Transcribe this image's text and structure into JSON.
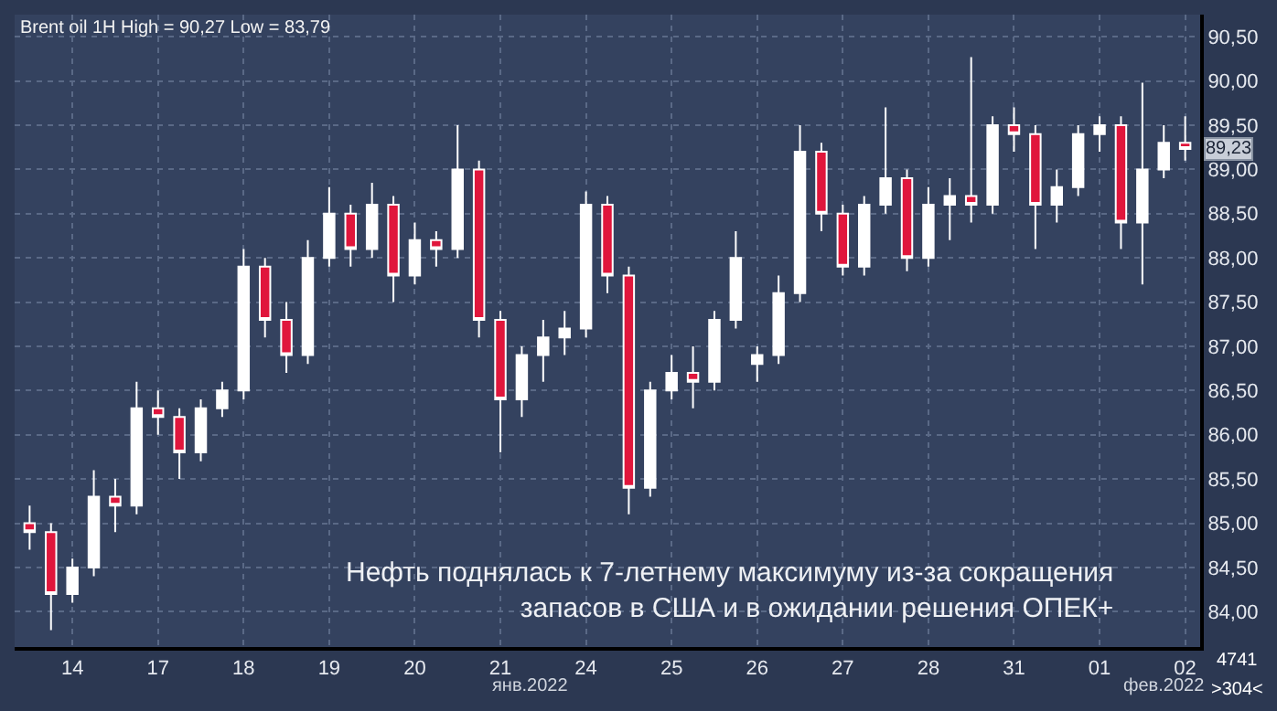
{
  "chart_data": {
    "type": "candlestick",
    "title": "Brent oil 1H High = 90,27 Low = 83,79",
    "categories": [
      null,
      null,
      "14",
      null,
      null,
      null,
      "17",
      null,
      null,
      null,
      "18",
      null,
      null,
      null,
      "19",
      null,
      null,
      null,
      "20",
      null,
      null,
      null,
      "21",
      null,
      null,
      null,
      "24",
      null,
      null,
      null,
      "25",
      null,
      null,
      null,
      "26",
      null,
      null,
      null,
      "27",
      null,
      null,
      null,
      "28",
      null,
      null,
      null,
      "31",
      null,
      null,
      null,
      "01",
      null,
      null,
      null,
      "02"
    ],
    "ohlc": [
      [
        85.0,
        85.2,
        84.7,
        84.9
      ],
      [
        84.9,
        85.0,
        83.79,
        84.2
      ],
      [
        84.2,
        84.6,
        84.1,
        84.5
      ],
      [
        84.5,
        85.6,
        84.4,
        85.3
      ],
      [
        85.3,
        85.5,
        84.9,
        85.2
      ],
      [
        85.2,
        86.6,
        85.1,
        86.3
      ],
      [
        86.3,
        86.5,
        86.0,
        86.2
      ],
      [
        86.2,
        86.3,
        85.5,
        85.8
      ],
      [
        85.8,
        86.4,
        85.7,
        86.3
      ],
      [
        86.3,
        86.6,
        86.2,
        86.5
      ],
      [
        86.5,
        88.1,
        86.4,
        87.9
      ],
      [
        87.9,
        88.0,
        87.1,
        87.3
      ],
      [
        87.3,
        87.5,
        86.7,
        86.9
      ],
      [
        86.9,
        88.2,
        86.8,
        88.0
      ],
      [
        88.0,
        88.8,
        87.9,
        88.5
      ],
      [
        88.5,
        88.6,
        87.9,
        88.1
      ],
      [
        88.1,
        88.85,
        88.0,
        88.6
      ],
      [
        88.6,
        88.7,
        87.5,
        87.8
      ],
      [
        87.8,
        88.4,
        87.7,
        88.2
      ],
      [
        88.2,
        88.3,
        87.9,
        88.1
      ],
      [
        88.1,
        89.5,
        88.0,
        89.0
      ],
      [
        89.0,
        89.1,
        87.1,
        87.3
      ],
      [
        87.3,
        87.4,
        85.8,
        86.4
      ],
      [
        86.4,
        87.0,
        86.2,
        86.9
      ],
      [
        86.9,
        87.3,
        86.6,
        87.1
      ],
      [
        87.1,
        87.4,
        86.9,
        87.2
      ],
      [
        87.2,
        88.75,
        87.1,
        88.6
      ],
      [
        88.6,
        88.7,
        87.6,
        87.8
      ],
      [
        87.8,
        87.9,
        85.1,
        85.4
      ],
      [
        85.4,
        86.6,
        85.3,
        86.5
      ],
      [
        86.5,
        86.9,
        86.4,
        86.7
      ],
      [
        86.7,
        87.0,
        86.3,
        86.6
      ],
      [
        86.6,
        87.4,
        86.5,
        87.3
      ],
      [
        87.3,
        88.3,
        87.2,
        88.0
      ],
      [
        86.8,
        87.0,
        86.6,
        86.9
      ],
      [
        86.9,
        87.8,
        86.8,
        87.6
      ],
      [
        87.6,
        89.5,
        87.5,
        89.2
      ],
      [
        89.2,
        89.3,
        88.3,
        88.5
      ],
      [
        88.5,
        88.6,
        87.8,
        87.9
      ],
      [
        87.9,
        88.7,
        87.8,
        88.6
      ],
      [
        88.6,
        89.7,
        88.5,
        88.9
      ],
      [
        88.9,
        89.0,
        87.85,
        88.0
      ],
      [
        88.0,
        88.8,
        87.9,
        88.6
      ],
      [
        88.6,
        88.9,
        88.2,
        88.7
      ],
      [
        88.7,
        90.27,
        88.4,
        88.6
      ],
      [
        88.6,
        89.6,
        88.5,
        89.5
      ],
      [
        89.5,
        89.7,
        89.2,
        89.4
      ],
      [
        89.4,
        89.5,
        88.1,
        88.6
      ],
      [
        88.6,
        89.0,
        88.4,
        88.8
      ],
      [
        88.8,
        89.5,
        88.7,
        89.4
      ],
      [
        89.4,
        89.6,
        89.2,
        89.5
      ],
      [
        89.5,
        89.6,
        88.1,
        88.4
      ],
      [
        88.4,
        89.98,
        87.7,
        89.0
      ],
      [
        89.0,
        89.5,
        88.9,
        89.3
      ],
      [
        89.3,
        89.6,
        89.1,
        89.23
      ]
    ],
    "ylim": [
      83.6,
      90.75
    ],
    "yticks": [
      {
        "value": 84.0,
        "label": "84,00"
      },
      {
        "value": 84.5,
        "label": "84,50"
      },
      {
        "value": 85.0,
        "label": "85,00"
      },
      {
        "value": 85.5,
        "label": "85,50"
      },
      {
        "value": 86.0,
        "label": "86,00"
      },
      {
        "value": 86.5,
        "label": "86,50"
      },
      {
        "value": 87.0,
        "label": "87,00"
      },
      {
        "value": 87.5,
        "label": "87,50"
      },
      {
        "value": 88.0,
        "label": "88,00"
      },
      {
        "value": 88.5,
        "label": "88,50"
      },
      {
        "value": 89.0,
        "label": "89,00"
      },
      {
        "value": 89.5,
        "label": "89,50"
      },
      {
        "value": 90.0,
        "label": "90,00"
      },
      {
        "value": 90.5,
        "label": "90,50"
      }
    ],
    "grid": true,
    "annotations": [
      "Нефть поднялась к 7-летнему максимуму из-за сокращения\nзапасов в США и в ожидании решения ОПЕК+",
      {
        "text": "89,23",
        "y": 89.23
      },
      "янв.2022",
      "фев.2022",
      "4741",
      ">304<"
    ]
  }
}
